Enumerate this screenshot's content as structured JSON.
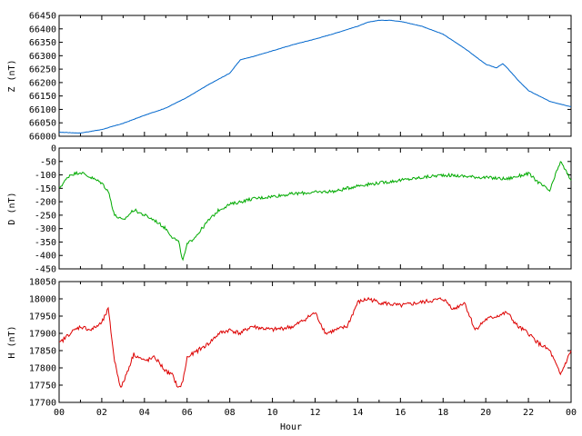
{
  "chart_data": [
    {
      "type": "line",
      "ylabel": "Z (nT)",
      "ylim": [
        66000,
        66450
      ],
      "yticks": [
        66000,
        66050,
        66100,
        66150,
        66200,
        66250,
        66300,
        66350,
        66400,
        66450
      ],
      "xlim": [
        0,
        24
      ],
      "color": "#0066cc",
      "series": [
        {
          "x": [
            0,
            1,
            2,
            3,
            4,
            5,
            6,
            7,
            8,
            8.5,
            9,
            10,
            11,
            12,
            13,
            14,
            14.5,
            15,
            15.5,
            16,
            17,
            18,
            19,
            20,
            20.5,
            20.8,
            21,
            21.5,
            22,
            23,
            24
          ],
          "values": [
            66015,
            66012,
            66025,
            66048,
            66078,
            66105,
            66145,
            66192,
            66235,
            66285,
            66295,
            66318,
            66342,
            66362,
            66385,
            66410,
            66425,
            66432,
            66432,
            66428,
            66410,
            66380,
            66328,
            66268,
            66255,
            66270,
            66255,
            66210,
            66170,
            66130,
            66110
          ]
        }
      ]
    },
    {
      "type": "line",
      "ylabel": "D (nT)",
      "ylim": [
        -450,
        0
      ],
      "yticks": [
        -450,
        -400,
        -350,
        -300,
        -250,
        -200,
        -150,
        -100,
        -50,
        0
      ],
      "xlim": [
        0,
        24
      ],
      "color": "#00aa00",
      "series": [
        {
          "x": [
            0,
            0.5,
            1,
            1.5,
            2,
            2.3,
            2.6,
            3,
            3.5,
            4,
            4.5,
            5,
            5.3,
            5.6,
            5.8,
            6,
            6.5,
            7,
            7.5,
            8,
            9,
            10,
            11,
            12,
            13,
            14,
            15,
            16,
            17,
            18,
            19,
            20,
            21,
            22,
            22.5,
            23,
            23.5,
            24
          ],
          "values": [
            -150,
            -100,
            -90,
            -110,
            -130,
            -160,
            -250,
            -270,
            -230,
            -250,
            -270,
            -300,
            -330,
            -350,
            -420,
            -360,
            -320,
            -270,
            -230,
            -210,
            -190,
            -180,
            -170,
            -165,
            -160,
            -140,
            -130,
            -120,
            -110,
            -100,
            -105,
            -110,
            -115,
            -95,
            -130,
            -160,
            -50,
            -120
          ]
        }
      ]
    },
    {
      "type": "line",
      "ylabel": "H (nT)",
      "ylim": [
        17700,
        18050
      ],
      "yticks": [
        17700,
        17750,
        17800,
        17850,
        17900,
        17950,
        18000,
        18050
      ],
      "xlim": [
        0,
        24
      ],
      "xticks": [
        "00",
        "02",
        "04",
        "06",
        "08",
        "10",
        "12",
        "14",
        "16",
        "18",
        "20",
        "22",
        "00"
      ],
      "xlabel": "Hour",
      "color": "#dd0000",
      "series": [
        {
          "x": [
            0,
            0.5,
            1,
            1.5,
            2,
            2.3,
            2.6,
            2.9,
            3.2,
            3.5,
            4,
            4.5,
            5,
            5.3,
            5.6,
            5.8,
            6,
            6.5,
            7,
            7.5,
            8,
            8.5,
            9,
            10,
            11,
            12,
            12.5,
            13,
            13.5,
            14,
            14.5,
            15,
            16,
            17,
            18,
            18.5,
            19,
            19.5,
            20,
            21,
            21.5,
            22,
            22.5,
            23,
            23.5,
            24
          ],
          "values": [
            17870,
            17900,
            17920,
            17910,
            17930,
            17970,
            17820,
            17740,
            17790,
            17840,
            17820,
            17830,
            17790,
            17780,
            17740,
            17760,
            17830,
            17850,
            17870,
            17900,
            17910,
            17900,
            17920,
            17910,
            17920,
            17960,
            17900,
            17910,
            17920,
            17990,
            18000,
            17990,
            17980,
            17990,
            18000,
            17970,
            17990,
            17910,
            17940,
            17960,
            17920,
            17900,
            17870,
            17850,
            17780,
            17850
          ]
        }
      ]
    }
  ]
}
